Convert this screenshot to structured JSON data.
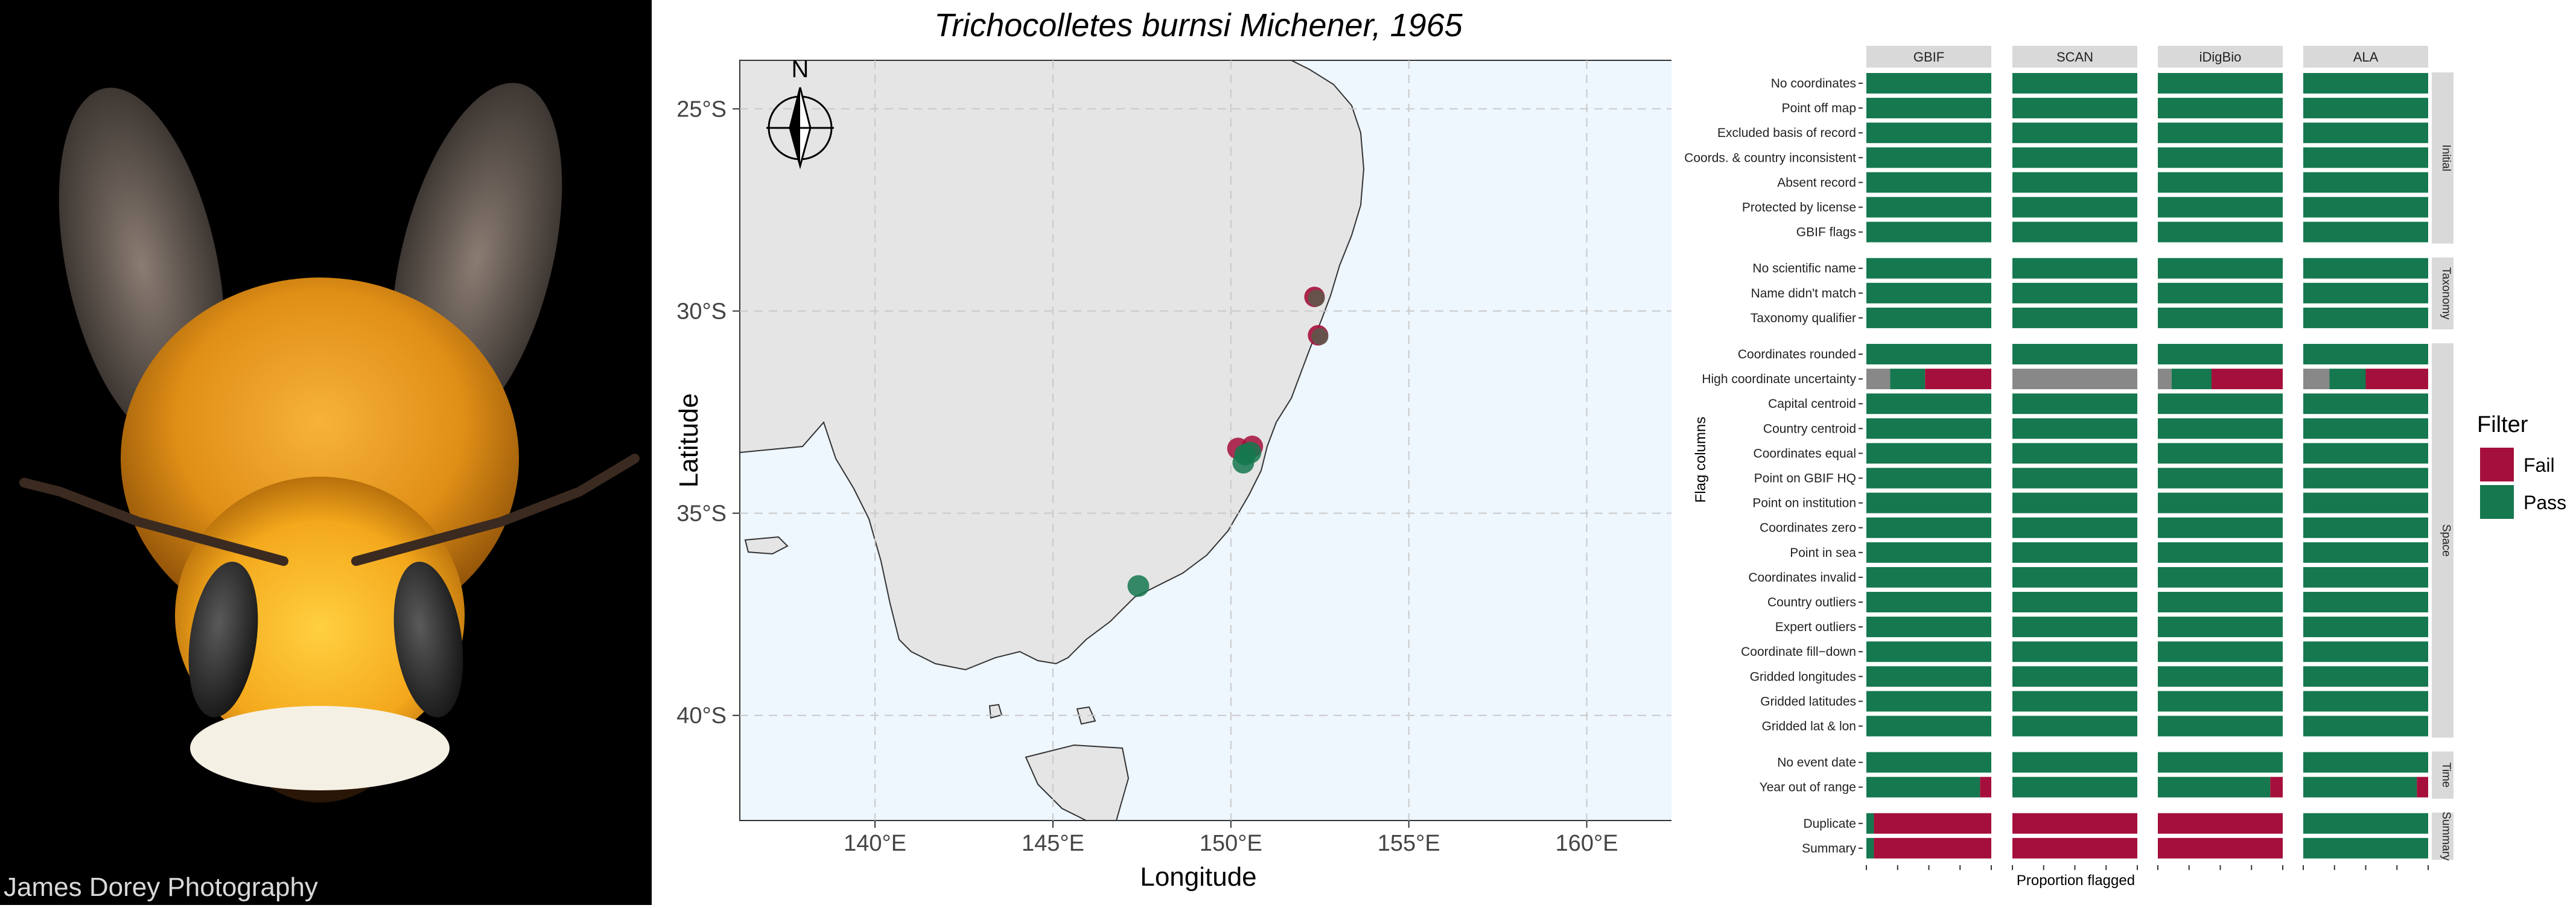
{
  "photo": {
    "subject": "bee-face-photo",
    "credit": "James Dorey Photography"
  },
  "chart_data": [
    {
      "type": "scatter",
      "title": "Trichocolletes burnsi Michener, 1965",
      "xlabel": "Longitude",
      "ylabel": "Latitude",
      "x_ticks": [
        "140°E",
        "145°E",
        "150°E",
        "155°E",
        "160°E"
      ],
      "x_tick_values": [
        140,
        145,
        150,
        155,
        160
      ],
      "y_ticks": [
        "25°S",
        "30°S",
        "35°S",
        "40°S"
      ],
      "y_tick_values": [
        -25,
        -30,
        -35,
        -40
      ],
      "xlim": [
        136.2,
        163.5
      ],
      "ylim": [
        -42.6,
        -23.8
      ],
      "north_arrow_label": "N",
      "grid": true,
      "land_color": "#e5e5e5",
      "sea_color": "#eef6fe",
      "points": [
        {
          "lon": 152.35,
          "lat": -29.65,
          "status": "mixed"
        },
        {
          "lon": 152.45,
          "lat": -30.6,
          "status": "mixed"
        },
        {
          "lon": 150.2,
          "lat": -33.4,
          "status": "fail"
        },
        {
          "lon": 150.6,
          "lat": -33.35,
          "status": "fail"
        },
        {
          "lon": 150.4,
          "lat": -33.55,
          "status": "pass"
        },
        {
          "lon": 150.35,
          "lat": -33.75,
          "status": "pass"
        },
        {
          "lon": 150.55,
          "lat": -33.5,
          "status": "pass"
        },
        {
          "lon": 147.4,
          "lat": -36.8,
          "status": "pass"
        }
      ]
    },
    {
      "type": "bar",
      "orientation": "horizontal-stacked",
      "xlabel": "Proportion flagged",
      "ylabel": "Flag columns",
      "legend_title": "Filter",
      "legend": [
        {
          "label": "Fail",
          "color": "#a50f3c"
        },
        {
          "label": "Pass",
          "color": "#15784f"
        }
      ],
      "na_color": "#888888",
      "facets_x": [
        "GBIF",
        "SCAN",
        "iDigBio",
        "ALA"
      ],
      "groups": [
        {
          "name": "Initial",
          "rows": [
            {
              "label": "No coordinates",
              "values": [
                {
                  "pass": 1
                },
                {
                  "pass": 1
                },
                {
                  "pass": 1
                },
                {
                  "pass": 1
                }
              ]
            },
            {
              "label": "Point off map",
              "values": [
                {
                  "pass": 1
                },
                {
                  "pass": 1
                },
                {
                  "pass": 1
                },
                {
                  "pass": 1
                }
              ]
            },
            {
              "label": "Excluded basis of record",
              "values": [
                {
                  "pass": 1
                },
                {
                  "pass": 1
                },
                {
                  "pass": 1
                },
                {
                  "pass": 1
                }
              ]
            },
            {
              "label": "Coords. & country inconsistent",
              "values": [
                {
                  "pass": 1
                },
                {
                  "pass": 1
                },
                {
                  "pass": 1
                },
                {
                  "pass": 1
                }
              ]
            },
            {
              "label": "Absent record",
              "values": [
                {
                  "pass": 1
                },
                {
                  "pass": 1
                },
                {
                  "pass": 1
                },
                {
                  "pass": 1
                }
              ]
            },
            {
              "label": "Protected by license",
              "values": [
                {
                  "pass": 1
                },
                {
                  "pass": 1
                },
                {
                  "pass": 1
                },
                {
                  "pass": 1
                }
              ]
            },
            {
              "label": "GBIF flags",
              "values": [
                {
                  "pass": 1
                },
                {
                  "pass": 1
                },
                {
                  "pass": 1
                },
                {
                  "pass": 1
                }
              ]
            }
          ]
        },
        {
          "name": "Taxonomy",
          "rows": [
            {
              "label": "No scientific name",
              "values": [
                {
                  "pass": 1
                },
                {
                  "pass": 1
                },
                {
                  "pass": 1
                },
                {
                  "pass": 1
                }
              ]
            },
            {
              "label": "Name didn't match",
              "values": [
                {
                  "pass": 1
                },
                {
                  "pass": 1
                },
                {
                  "pass": 1
                },
                {
                  "pass": 1
                }
              ]
            },
            {
              "label": "Taxonomy qualifier",
              "values": [
                {
                  "pass": 1
                },
                {
                  "pass": 1
                },
                {
                  "pass": 1
                },
                {
                  "pass": 1
                }
              ]
            }
          ]
        },
        {
          "name": "Space",
          "rows": [
            {
              "label": "Coordinates rounded",
              "values": [
                {
                  "pass": 1
                },
                {
                  "pass": 1
                },
                {
                  "pass": 1
                },
                {
                  "pass": 1
                }
              ]
            },
            {
              "label": "High coordinate uncertainty",
              "values": [
                {
                  "na": 0.19,
                  "pass": 0.28,
                  "fail": 0.53
                },
                {
                  "na": 1
                },
                {
                  "na": 0.11,
                  "pass": 0.32,
                  "fail": 0.57
                },
                {
                  "na": 0.21,
                  "pass": 0.29,
                  "fail": 0.5
                }
              ]
            },
            {
              "label": "Capital centroid",
              "values": [
                {
                  "pass": 1
                },
                {
                  "pass": 1
                },
                {
                  "pass": 1
                },
                {
                  "pass": 1
                }
              ]
            },
            {
              "label": "Country centroid",
              "values": [
                {
                  "pass": 1
                },
                {
                  "pass": 1
                },
                {
                  "pass": 1
                },
                {
                  "pass": 1
                }
              ]
            },
            {
              "label": "Coordinates equal",
              "values": [
                {
                  "pass": 1
                },
                {
                  "pass": 1
                },
                {
                  "pass": 1
                },
                {
                  "pass": 1
                }
              ]
            },
            {
              "label": "Point on GBIF HQ",
              "values": [
                {
                  "pass": 1
                },
                {
                  "pass": 1
                },
                {
                  "pass": 1
                },
                {
                  "pass": 1
                }
              ]
            },
            {
              "label": "Point on institution",
              "values": [
                {
                  "pass": 1
                },
                {
                  "pass": 1
                },
                {
                  "pass": 1
                },
                {
                  "pass": 1
                }
              ]
            },
            {
              "label": "Coordinates zero",
              "values": [
                {
                  "pass": 1
                },
                {
                  "pass": 1
                },
                {
                  "pass": 1
                },
                {
                  "pass": 1
                }
              ]
            },
            {
              "label": "Point in sea",
              "values": [
                {
                  "pass": 1
                },
                {
                  "pass": 1
                },
                {
                  "pass": 1
                },
                {
                  "pass": 1
                }
              ]
            },
            {
              "label": "Coordinates invalid",
              "values": [
                {
                  "pass": 1
                },
                {
                  "pass": 1
                },
                {
                  "pass": 1
                },
                {
                  "pass": 1
                }
              ]
            },
            {
              "label": "Country outliers",
              "values": [
                {
                  "pass": 1
                },
                {
                  "pass": 1
                },
                {
                  "pass": 1
                },
                {
                  "pass": 1
                }
              ]
            },
            {
              "label": "Expert outliers",
              "values": [
                {
                  "pass": 1
                },
                {
                  "pass": 1
                },
                {
                  "pass": 1
                },
                {
                  "pass": 1
                }
              ]
            },
            {
              "label": "Coordinate fill−down",
              "values": [
                {
                  "pass": 1
                },
                {
                  "pass": 1
                },
                {
                  "pass": 1
                },
                {
                  "pass": 1
                }
              ]
            },
            {
              "label": "Gridded longitudes",
              "values": [
                {
                  "pass": 1
                },
                {
                  "pass": 1
                },
                {
                  "pass": 1
                },
                {
                  "pass": 1
                }
              ]
            },
            {
              "label": "Gridded latitudes",
              "values": [
                {
                  "pass": 1
                },
                {
                  "pass": 1
                },
                {
                  "pass": 1
                },
                {
                  "pass": 1
                }
              ]
            },
            {
              "label": "Gridded lat & lon",
              "values": [
                {
                  "pass": 1
                },
                {
                  "pass": 1
                },
                {
                  "pass": 1
                },
                {
                  "pass": 1
                }
              ]
            }
          ]
        },
        {
          "name": "Time",
          "rows": [
            {
              "label": "No event date",
              "values": [
                {
                  "pass": 1
                },
                {
                  "pass": 1
                },
                {
                  "pass": 1
                },
                {
                  "pass": 1
                }
              ]
            },
            {
              "label": "Year out of range",
              "values": [
                {
                  "pass": 0.91,
                  "fail": 0.09
                },
                {
                  "pass": 1
                },
                {
                  "pass": 0.9,
                  "fail": 0.1
                },
                {
                  "pass": 0.91,
                  "fail": 0.09
                }
              ]
            }
          ]
        },
        {
          "name": "Summary",
          "rows": [
            {
              "label": "Duplicate",
              "values": [
                {
                  "pass": 0.06,
                  "fail": 0.94
                },
                {
                  "fail": 1
                },
                {
                  "fail": 1
                },
                {
                  "pass": 1
                }
              ]
            },
            {
              "label": "Summary",
              "values": [
                {
                  "pass": 0.06,
                  "fail": 0.94
                },
                {
                  "fail": 1
                },
                {
                  "fail": 1
                },
                {
                  "pass": 1
                }
              ]
            }
          ]
        }
      ]
    }
  ]
}
